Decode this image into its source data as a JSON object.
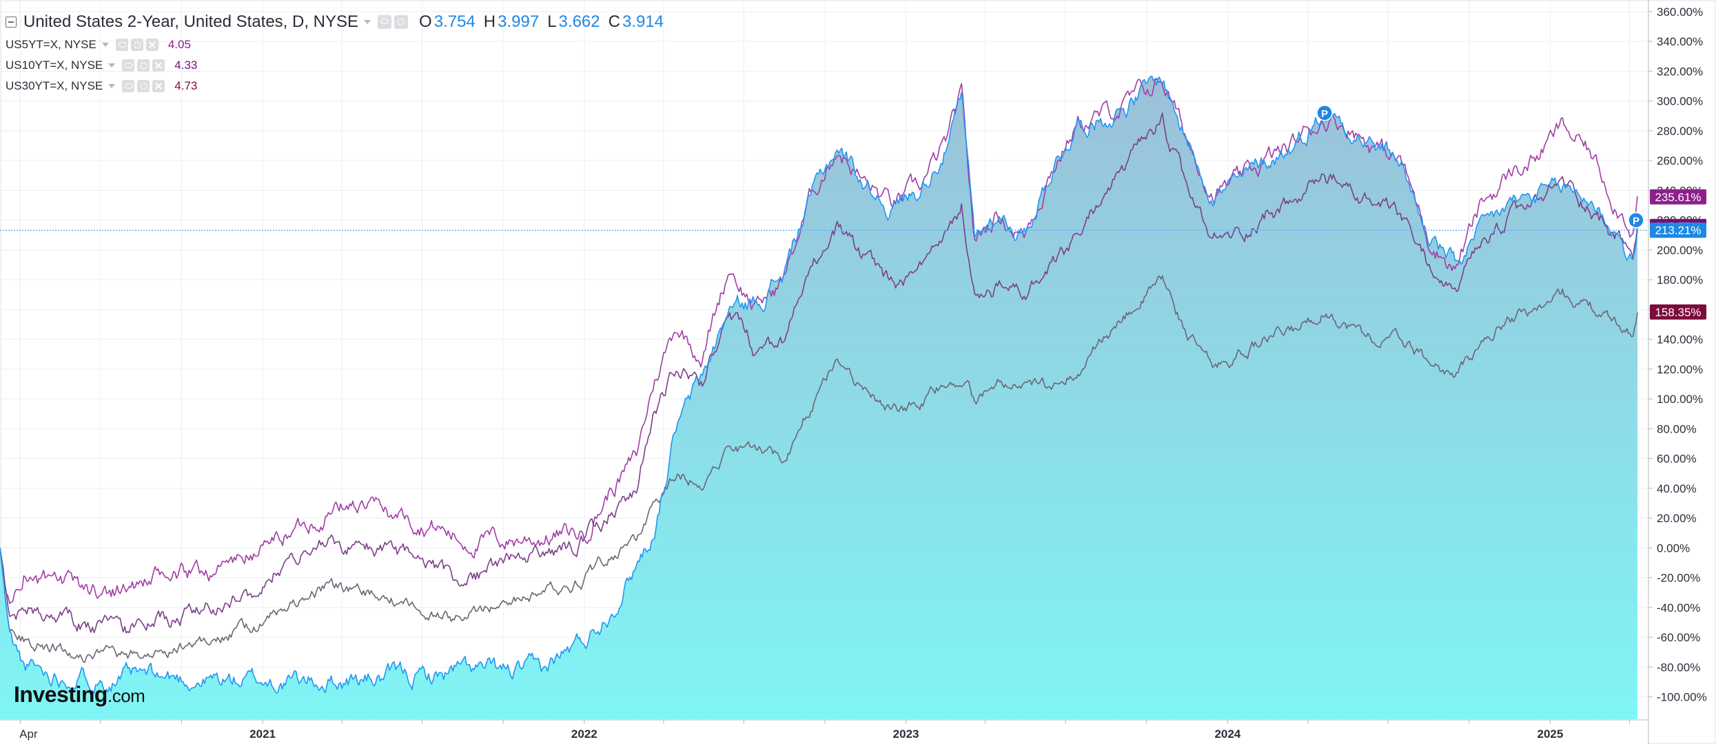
{
  "legend": {
    "main": {
      "title": "United States 2-Year, United States, D, NYSE",
      "open_label": "O",
      "open": "3.754",
      "high_label": "H",
      "high": "3.997",
      "low_label": "L",
      "low": "3.662",
      "close_label": "C",
      "close": "3.914"
    },
    "overlays": [
      {
        "name": "US5YT=X, NYSE",
        "value": "4.05",
        "color": "#8e1f8c"
      },
      {
        "name": "US10YT=X, NYSE",
        "value": "4.33",
        "color": "#7a0f6e"
      },
      {
        "name": "US30YT=X, NYSE",
        "value": "4.73",
        "color": "#7d0b3c"
      }
    ]
  },
  "logo": {
    "bold": "Investing",
    "suffix": ".com"
  },
  "colors": {
    "us2y_line": "#2196f3",
    "us2y_fill_top": "#9bc0d8",
    "us2y_fill_bottom": "#80f5f5",
    "us5y": "#a03da4",
    "us10y": "#7c3e88",
    "us30y": "#6e6475",
    "crosshair": "#64b5f6",
    "grid": "#eceef2",
    "axis_text": "#2a2e39"
  },
  "chart_data": {
    "type": "line",
    "y_unit": "%",
    "ylim": [
      -115,
      365
    ],
    "grid": true,
    "y_ticks": [
      "-100.00%",
      "-80.00%",
      "-60.00%",
      "-40.00%",
      "-20.00%",
      "0.00%",
      "20.00%",
      "40.00%",
      "60.00%",
      "80.00%",
      "100.00%",
      "120.00%",
      "140.00%",
      "160.00%",
      "180.00%",
      "200.00%",
      "220.00%",
      "240.00%",
      "260.00%",
      "280.00%",
      "300.00%",
      "320.00%",
      "340.00%",
      "360.00%"
    ],
    "x_labels": [
      {
        "label": "Apr",
        "date": "2020-04-01"
      },
      {
        "label": "2021",
        "date": "2021-01-01"
      },
      {
        "label": "2022",
        "date": "2022-01-01"
      },
      {
        "label": "2023",
        "date": "2023-01-01"
      },
      {
        "label": "2024",
        "date": "2024-01-01"
      },
      {
        "label": "2025",
        "date": "2025-01-01"
      }
    ],
    "x_range": [
      "2020-03-09",
      "2025-04-10"
    ],
    "crosshair_value": 213.21,
    "price_labels": [
      {
        "text": "235.61%",
        "value": 235.61,
        "series": "US5YT=X, NYSE"
      },
      {
        "text": "215.77%",
        "value": 215.77,
        "series": "US10YT=X, NYSE"
      },
      {
        "text": "213.21%",
        "value": 213.21,
        "series": "United States 2-Year, United States, D, NYSE"
      },
      {
        "text": "158.35%",
        "value": 158.35,
        "series": "US30YT=X, NYSE"
      }
    ],
    "markers": [
      {
        "text": "P",
        "date": "2024-04-20",
        "value": 292
      },
      {
        "text": "P",
        "date": "2025-04-10",
        "value": 220
      }
    ],
    "series": [
      {
        "name": "United States 2-Year, United States, D, NYSE",
        "area": true,
        "points": [
          [
            "2020-03-09",
            0
          ],
          [
            "2020-03-20",
            -60
          ],
          [
            "2020-04-05",
            -80
          ],
          [
            "2020-05-01",
            -84
          ],
          [
            "2020-06-15",
            -86
          ],
          [
            "2020-08-01",
            -87
          ],
          [
            "2020-10-01",
            -88
          ],
          [
            "2020-12-01",
            -89
          ],
          [
            "2021-02-01",
            -90
          ],
          [
            "2021-04-01",
            -89
          ],
          [
            "2021-06-01",
            -87
          ],
          [
            "2021-07-15",
            -86
          ],
          [
            "2021-08-10",
            -82
          ],
          [
            "2021-10-01",
            -84
          ],
          [
            "2021-11-15",
            -83
          ],
          [
            "2021-12-01",
            -74
          ],
          [
            "2022-01-01",
            -62
          ],
          [
            "2022-02-01",
            -40
          ],
          [
            "2022-03-01",
            -10
          ],
          [
            "2022-03-20",
            10
          ],
          [
            "2022-04-15",
            80
          ],
          [
            "2022-05-15",
            115
          ],
          [
            "2022-06-15",
            160
          ],
          [
            "2022-07-15",
            165
          ],
          [
            "2022-08-15",
            185
          ],
          [
            "2022-09-15",
            235
          ],
          [
            "2022-10-15",
            270
          ],
          [
            "2022-11-15",
            245
          ],
          [
            "2022-12-15",
            230
          ],
          [
            "2023-01-15",
            240
          ],
          [
            "2023-02-15",
            270
          ],
          [
            "2023-03-05",
            300
          ],
          [
            "2023-03-20",
            205
          ],
          [
            "2023-04-15",
            225
          ],
          [
            "2023-05-15",
            210
          ],
          [
            "2023-06-15",
            255
          ],
          [
            "2023-07-15",
            285
          ],
          [
            "2023-08-15",
            290
          ],
          [
            "2023-09-15",
            300
          ],
          [
            "2023-10-19",
            315
          ],
          [
            "2023-11-15",
            275
          ],
          [
            "2023-12-15",
            240
          ],
          [
            "2024-01-15",
            245
          ],
          [
            "2024-02-15",
            260
          ],
          [
            "2024-03-15",
            270
          ],
          [
            "2024-04-20",
            293
          ],
          [
            "2024-05-15",
            285
          ],
          [
            "2024-06-15",
            270
          ],
          [
            "2024-07-15",
            260
          ],
          [
            "2024-08-15",
            210
          ],
          [
            "2024-09-15",
            190
          ],
          [
            "2024-10-15",
            210
          ],
          [
            "2024-11-15",
            230
          ],
          [
            "2024-12-15",
            235
          ],
          [
            "2025-01-15",
            240
          ],
          [
            "2025-02-15",
            235
          ],
          [
            "2025-03-15",
            215
          ],
          [
            "2025-04-05",
            190
          ],
          [
            "2025-04-10",
            213
          ]
        ]
      },
      {
        "name": "US5YT=X, NYSE",
        "points": [
          [
            "2020-03-09",
            0
          ],
          [
            "2020-03-20",
            -40
          ],
          [
            "2020-04-05",
            -15
          ],
          [
            "2020-05-01",
            -25
          ],
          [
            "2020-07-01",
            -30
          ],
          [
            "2020-09-01",
            -22
          ],
          [
            "2020-11-01",
            -15
          ],
          [
            "2020-12-15",
            -5
          ],
          [
            "2021-01-15",
            5
          ],
          [
            "2021-03-15",
            25
          ],
          [
            "2021-04-15",
            30
          ],
          [
            "2021-06-01",
            22
          ],
          [
            "2021-07-15",
            15
          ],
          [
            "2021-08-15",
            5
          ],
          [
            "2021-10-01",
            5
          ],
          [
            "2021-11-15",
            8
          ],
          [
            "2022-01-01",
            10
          ],
          [
            "2022-02-01",
            40
          ],
          [
            "2022-03-01",
            60
          ],
          [
            "2022-03-20",
            110
          ],
          [
            "2022-04-15",
            150
          ],
          [
            "2022-05-15",
            130
          ],
          [
            "2022-06-15",
            190
          ],
          [
            "2022-07-15",
            160
          ],
          [
            "2022-08-15",
            180
          ],
          [
            "2022-09-15",
            235
          ],
          [
            "2022-10-15",
            270
          ],
          [
            "2022-11-15",
            245
          ],
          [
            "2022-12-15",
            230
          ],
          [
            "2023-01-15",
            240
          ],
          [
            "2023-02-15",
            270
          ],
          [
            "2023-03-05",
            300
          ],
          [
            "2023-03-20",
            205
          ],
          [
            "2023-04-15",
            225
          ],
          [
            "2023-05-15",
            210
          ],
          [
            "2023-06-15",
            255
          ],
          [
            "2023-07-15",
            285
          ],
          [
            "2023-08-15",
            290
          ],
          [
            "2023-09-15",
            300
          ],
          [
            "2023-10-19",
            315
          ],
          [
            "2023-11-15",
            275
          ],
          [
            "2023-12-15",
            240
          ],
          [
            "2024-01-15",
            245
          ],
          [
            "2024-02-15",
            260
          ],
          [
            "2024-03-15",
            270
          ],
          [
            "2024-04-20",
            290
          ],
          [
            "2024-05-15",
            285
          ],
          [
            "2024-06-15",
            270
          ],
          [
            "2024-07-15",
            260
          ],
          [
            "2024-08-15",
            210
          ],
          [
            "2024-09-15",
            188
          ],
          [
            "2024-10-15",
            230
          ],
          [
            "2024-11-15",
            250
          ],
          [
            "2024-12-15",
            262
          ],
          [
            "2025-01-15",
            282
          ],
          [
            "2025-02-15",
            265
          ],
          [
            "2025-03-15",
            235
          ],
          [
            "2025-04-05",
            215
          ],
          [
            "2025-04-10",
            236
          ]
        ]
      },
      {
        "name": "US10YT=X, NYSE",
        "points": [
          [
            "2020-03-09",
            0
          ],
          [
            "2020-03-20",
            -50
          ],
          [
            "2020-04-05",
            -40
          ],
          [
            "2020-06-01",
            -50
          ],
          [
            "2020-08-01",
            -55
          ],
          [
            "2020-10-01",
            -45
          ],
          [
            "2020-12-15",
            -30
          ],
          [
            "2021-01-15",
            -15
          ],
          [
            "2021-03-15",
            5
          ],
          [
            "2021-04-15",
            0
          ],
          [
            "2021-06-01",
            -5
          ],
          [
            "2021-07-15",
            -15
          ],
          [
            "2021-08-15",
            -25
          ],
          [
            "2021-10-01",
            -10
          ],
          [
            "2021-11-15",
            -5
          ],
          [
            "2022-01-01",
            5
          ],
          [
            "2022-02-01",
            25
          ],
          [
            "2022-03-01",
            40
          ],
          [
            "2022-03-20",
            90
          ],
          [
            "2022-04-15",
            120
          ],
          [
            "2022-05-15",
            110
          ],
          [
            "2022-06-15",
            160
          ],
          [
            "2022-07-15",
            130
          ],
          [
            "2022-08-15",
            135
          ],
          [
            "2022-09-15",
            185
          ],
          [
            "2022-10-15",
            215
          ],
          [
            "2022-11-15",
            195
          ],
          [
            "2022-12-15",
            175
          ],
          [
            "2023-01-15",
            180
          ],
          [
            "2023-02-15",
            205
          ],
          [
            "2023-03-05",
            230
          ],
          [
            "2023-03-20",
            165
          ],
          [
            "2023-04-15",
            175
          ],
          [
            "2023-05-15",
            170
          ],
          [
            "2023-06-15",
            185
          ],
          [
            "2023-07-15",
            205
          ],
          [
            "2023-08-15",
            240
          ],
          [
            "2023-09-15",
            260
          ],
          [
            "2023-10-19",
            285
          ],
          [
            "2023-11-15",
            240
          ],
          [
            "2023-12-15",
            205
          ],
          [
            "2024-01-15",
            210
          ],
          [
            "2024-02-15",
            225
          ],
          [
            "2024-03-15",
            230
          ],
          [
            "2024-04-20",
            250
          ],
          [
            "2024-05-15",
            240
          ],
          [
            "2024-06-15",
            230
          ],
          [
            "2024-07-15",
            220
          ],
          [
            "2024-08-15",
            190
          ],
          [
            "2024-09-15",
            170
          ],
          [
            "2024-10-15",
            200
          ],
          [
            "2024-11-15",
            220
          ],
          [
            "2024-12-15",
            230
          ],
          [
            "2025-01-15",
            245
          ],
          [
            "2025-02-15",
            230
          ],
          [
            "2025-03-15",
            210
          ],
          [
            "2025-04-05",
            195
          ],
          [
            "2025-04-10",
            216
          ]
        ]
      },
      {
        "name": "US30YT=X, NYSE",
        "points": [
          [
            "2020-03-09",
            0
          ],
          [
            "2020-03-20",
            -55
          ],
          [
            "2020-04-05",
            -60
          ],
          [
            "2020-06-01",
            -70
          ],
          [
            "2020-08-01",
            -75
          ],
          [
            "2020-10-01",
            -65
          ],
          [
            "2020-12-15",
            -55
          ],
          [
            "2021-01-15",
            -45
          ],
          [
            "2021-03-15",
            -25
          ],
          [
            "2021-04-15",
            -30
          ],
          [
            "2021-06-01",
            -35
          ],
          [
            "2021-07-15",
            -45
          ],
          [
            "2021-08-15",
            -48
          ],
          [
            "2021-10-01",
            -35
          ],
          [
            "2021-11-15",
            -30
          ],
          [
            "2022-01-01",
            -20
          ],
          [
            "2022-02-01",
            -5
          ],
          [
            "2022-03-01",
            5
          ],
          [
            "2022-03-20",
            25
          ],
          [
            "2022-04-15",
            50
          ],
          [
            "2022-05-15",
            45
          ],
          [
            "2022-06-15",
            70
          ],
          [
            "2022-07-15",
            65
          ],
          [
            "2022-08-15",
            60
          ],
          [
            "2022-09-15",
            95
          ],
          [
            "2022-10-15",
            130
          ],
          [
            "2022-11-15",
            105
          ],
          [
            "2022-12-15",
            90
          ],
          [
            "2023-01-15",
            95
          ],
          [
            "2023-02-15",
            110
          ],
          [
            "2023-03-05",
            115
          ],
          [
            "2023-03-20",
            100
          ],
          [
            "2023-04-15",
            110
          ],
          [
            "2023-05-15",
            105
          ],
          [
            "2023-06-15",
            110
          ],
          [
            "2023-07-15",
            120
          ],
          [
            "2023-08-15",
            140
          ],
          [
            "2023-09-15",
            160
          ],
          [
            "2023-10-19",
            180
          ],
          [
            "2023-11-15",
            145
          ],
          [
            "2023-12-15",
            120
          ],
          [
            "2024-01-15",
            130
          ],
          [
            "2024-02-15",
            140
          ],
          [
            "2024-03-15",
            145
          ],
          [
            "2024-04-20",
            160
          ],
          [
            "2024-05-15",
            150
          ],
          [
            "2024-06-15",
            140
          ],
          [
            "2024-07-15",
            140
          ],
          [
            "2024-08-15",
            125
          ],
          [
            "2024-09-15",
            115
          ],
          [
            "2024-10-15",
            135
          ],
          [
            "2024-11-15",
            155
          ],
          [
            "2024-12-15",
            160
          ],
          [
            "2025-01-15",
            170
          ],
          [
            "2025-02-15",
            162
          ],
          [
            "2025-03-15",
            150
          ],
          [
            "2025-04-05",
            145
          ],
          [
            "2025-04-10",
            158
          ]
        ]
      }
    ]
  }
}
